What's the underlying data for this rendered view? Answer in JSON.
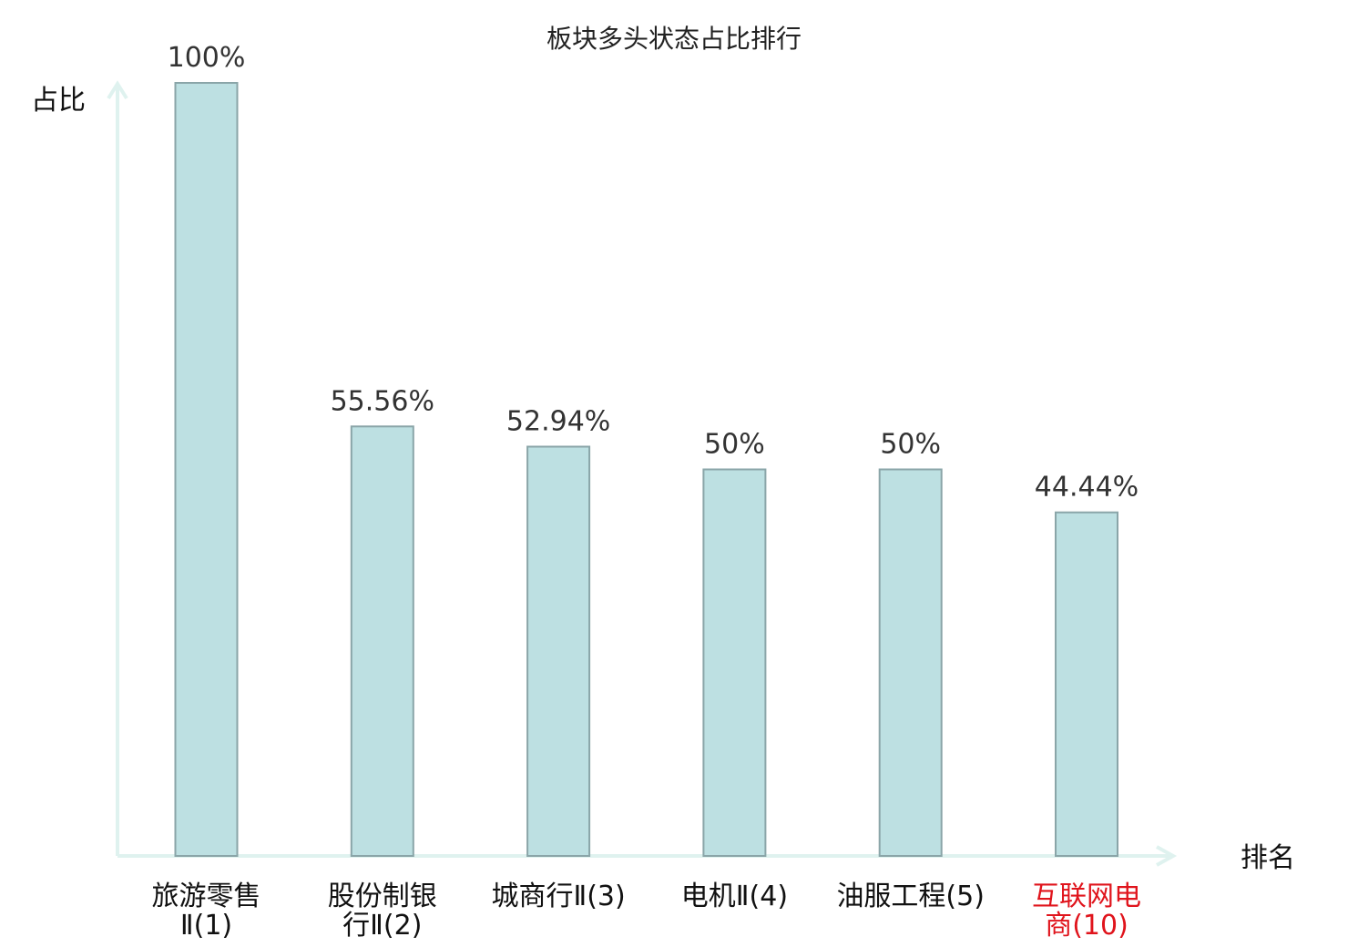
{
  "chart_data": {
    "type": "bar",
    "title": "板块多头状态占比排行",
    "ylabel": "占比",
    "xlabel": "排名",
    "ylim": [
      0,
      100
    ],
    "grid": false,
    "categories": [
      {
        "line1": "旅游零售",
        "line2": "Ⅱ(1)",
        "color": "#111111"
      },
      {
        "line1": "股份制银",
        "line2": "行Ⅱ(2)",
        "color": "#111111"
      },
      {
        "line1": "城商行Ⅱ(3)",
        "line2": "",
        "color": "#111111"
      },
      {
        "line1": "电机Ⅱ(4)",
        "line2": "",
        "color": "#111111"
      },
      {
        "line1": "油服工程(5)",
        "line2": "",
        "color": "#111111"
      },
      {
        "line1": "互联网电",
        "line2": "商(10)",
        "color": "#e0141c"
      }
    ],
    "values": [
      100,
      55.56,
      52.94,
      50,
      50,
      44.44
    ],
    "value_labels": [
      "100%",
      "55.56%",
      "52.94%",
      "50%",
      "50%",
      "44.44%"
    ],
    "colors": {
      "bar_fill": "#bde0e2",
      "bar_stroke": "#8aa5a8",
      "axis": "#dff2ef",
      "highlight": "#e0141c"
    }
  }
}
